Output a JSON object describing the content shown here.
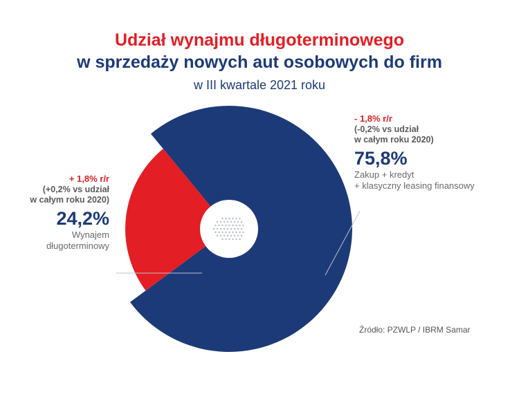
{
  "title": {
    "line1": "Udział wynajmu długoterminowego",
    "line2": "w sprzedaży nowych aut osobowych do firm",
    "subtitle": "w III kwartale 2021 roku"
  },
  "colors": {
    "red": "#e31e24",
    "navy": "#1d3a78"
  },
  "chart_data": {
    "type": "pie",
    "title": "Udział wynajmu długoterminowego w sprzedaży nowych aut osobowych do firm",
    "subtitle": "w III kwartale 2021 roku",
    "slices": [
      {
        "label_lines": [
          "Zakup + kredyt",
          "+ klasyczny leasing finansowy"
        ],
        "value": 75.8,
        "value_label": "75,8%",
        "change": "- 1,8% r/r",
        "note_lines": [
          "(-0,2% vs udział",
          "w całym roku 2020)"
        ],
        "color": "#1d3a78"
      },
      {
        "label_lines": [
          "Wynajem",
          "długoterminowy"
        ],
        "value": 24.2,
        "value_label": "24,2%",
        "change": "+ 1,8% r/r",
        "note_lines": [
          "(+0,2% vs udział",
          "w całym roku 2020)"
        ],
        "color": "#e31e24"
      }
    ],
    "source": "Źródło: PZWLP / IBRM Samar"
  }
}
